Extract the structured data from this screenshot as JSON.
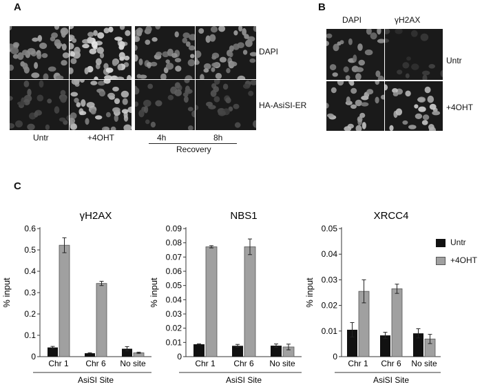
{
  "panels": {
    "a": {
      "letter": "A",
      "row_labels": [
        "DAPI",
        "HA-AsiSI-ER"
      ],
      "col_labels": [
        "Untr",
        "+4OHT",
        "4h",
        "8h"
      ],
      "group_label": "Recovery"
    },
    "b": {
      "letter": "B",
      "col_labels": [
        "DAPI",
        "γH2AX"
      ],
      "row_labels": [
        "Untr",
        "+4OHT"
      ]
    },
    "c": {
      "letter": "C"
    }
  },
  "legend": {
    "items": [
      "Untr",
      "+4OHT"
    ],
    "colors": [
      "#111111",
      "#a0a0a0"
    ]
  },
  "chart_data": [
    {
      "type": "bar",
      "title": "γH2AX",
      "ylabel": "% input",
      "xlabel": "AsiSI Site",
      "categories": [
        "Chr 1",
        "Chr 6",
        "No site"
      ],
      "ylim": [
        0,
        0.6
      ],
      "yticks": [
        "0",
        "0.1",
        "0.2",
        "0.3",
        "0.4",
        "0.5",
        "0.6"
      ],
      "series": [
        {
          "name": "Untr",
          "values": [
            0.043,
            0.016,
            0.037
          ],
          "errors": [
            0.005,
            0.002,
            0.01
          ]
        },
        {
          "name": "+4OHT",
          "values": [
            0.522,
            0.343,
            0.018
          ],
          "errors": [
            0.035,
            0.01,
            0.003
          ]
        }
      ]
    },
    {
      "type": "bar",
      "title": "NBS1",
      "ylabel": "% input",
      "xlabel": "AsiSI Site",
      "categories": [
        "Chr 1",
        "Chr 6",
        "No site"
      ],
      "ylim": [
        0,
        0.09
      ],
      "yticks": [
        "0",
        "0.01",
        "0.02",
        "0.03",
        "0.04",
        "0.05",
        "0.06",
        "0.07",
        "0.08",
        "0.09"
      ],
      "series": [
        {
          "name": "Untr",
          "values": [
            0.0087,
            0.0076,
            0.0077
          ],
          "errors": [
            0.0003,
            0.001,
            0.0012
          ]
        },
        {
          "name": "+4OHT",
          "values": [
            0.0772,
            0.0772,
            0.0068
          ],
          "errors": [
            0.0008,
            0.0055,
            0.002
          ]
        }
      ]
    },
    {
      "type": "bar",
      "title": "XRCC4",
      "ylabel": "% input",
      "xlabel": "AsiSI Site",
      "categories": [
        "Chr 1",
        "Chr 6",
        "No site"
      ],
      "ylim": [
        0,
        0.05
      ],
      "yticks": [
        "0",
        "0.01",
        "0.02",
        "0.03",
        "0.04",
        "0.05"
      ],
      "series": [
        {
          "name": "Untr",
          "values": [
            0.0105,
            0.0083,
            0.0091
          ],
          "errors": [
            0.0028,
            0.0012,
            0.0018
          ]
        },
        {
          "name": "+4OHT",
          "values": [
            0.0255,
            0.0265,
            0.0069
          ],
          "errors": [
            0.0045,
            0.0018,
            0.0018
          ]
        }
      ]
    }
  ]
}
